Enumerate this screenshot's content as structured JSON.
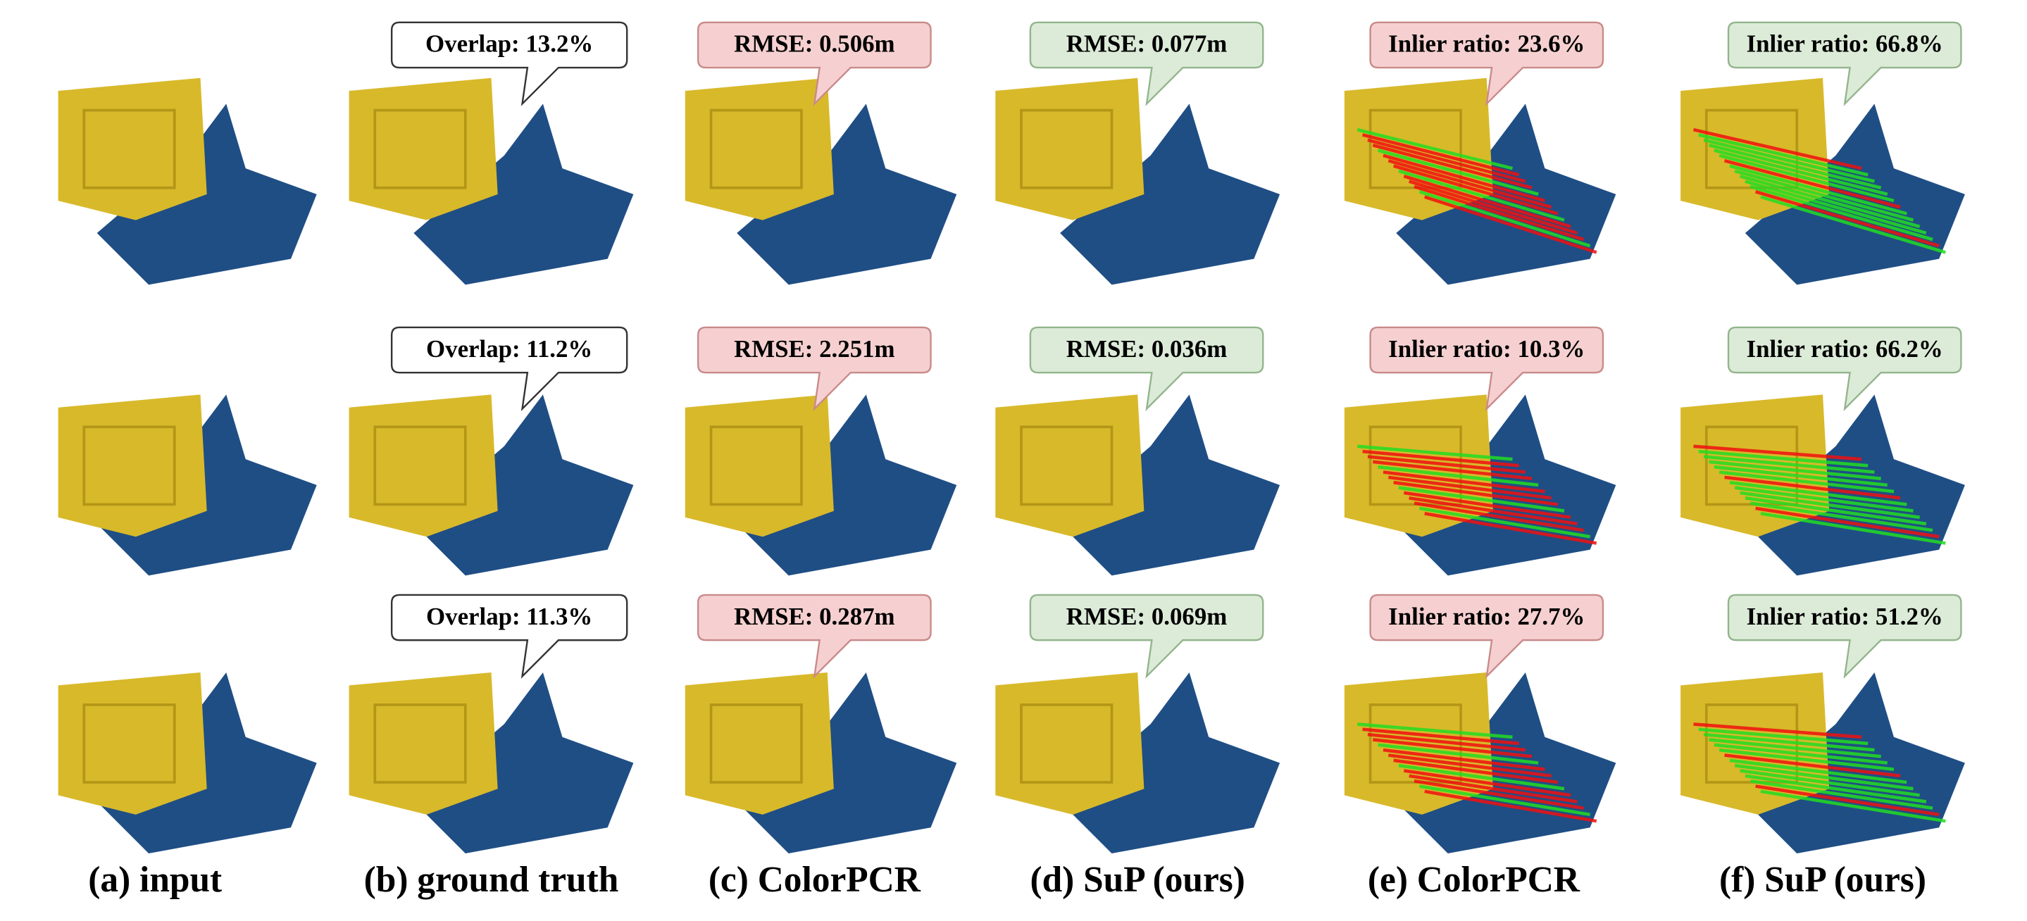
{
  "rows": [
    {
      "labels": [
        "Overlap: 13.2%",
        "RMSE: 0.506m",
        "RMSE: 0.077m",
        "Inlier ratio: 23.6%",
        "Inlier ratio: 66.8%"
      ]
    },
    {
      "labels": [
        "Overlap: 11.2%",
        "RMSE: 2.251m",
        "RMSE: 0.036m",
        "Inlier ratio: 10.3%",
        "Inlier ratio: 66.2%"
      ]
    },
    {
      "labels": [
        "Overlap: 11.3%",
        "RMSE: 0.287m",
        "RMSE: 0.069m",
        "Inlier ratio: 27.7%",
        "Inlier ratio: 51.2%"
      ]
    }
  ],
  "captions": [
    "(a) input",
    "(b) ground truth",
    "(c) ColorPCR",
    "(d) SuP (ours)",
    "(e) ColorPCR",
    "(f) SuP (ours)"
  ]
}
